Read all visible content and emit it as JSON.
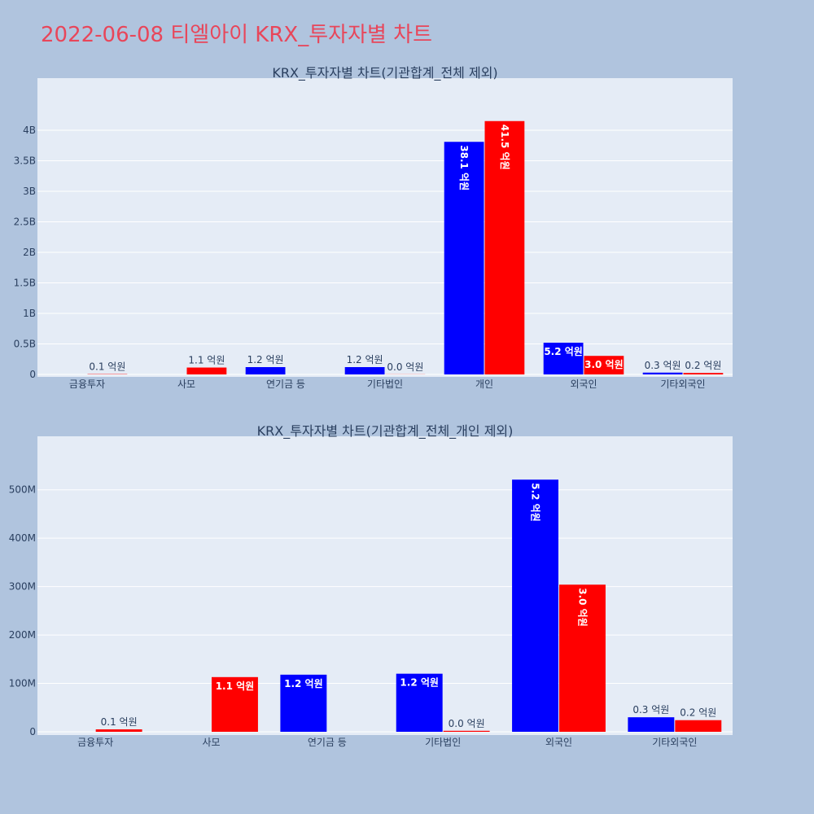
{
  "page_title": "2022-06-08 티엘아이 KRX_투자자별 차트",
  "colors": {
    "series_a": "#0000ff",
    "series_b": "#ff0000",
    "title": "#e8465a",
    "page_bg": "#b0c4de",
    "plot_bg": "#e5ecf6"
  },
  "chart_data": [
    {
      "type": "bar",
      "title": "KRX_투자자별 차트(기관합계_전체 제외)",
      "categories": [
        "금융투자",
        "사모",
        "연기금 등",
        "기타법인",
        "개인",
        "외국인",
        "기타외국인"
      ],
      "ylim": [
        0,
        4400000000
      ],
      "y_ticks": [
        0,
        500000000,
        1000000000,
        1500000000,
        2000000000,
        2500000000,
        3000000000,
        3500000000,
        4000000000
      ],
      "y_tick_labels": [
        "0",
        "0.5B",
        "1B",
        "1.5B",
        "2B",
        "2.5B",
        "3B",
        "3.5B",
        "4B"
      ],
      "grid": true,
      "series": [
        {
          "color": "#0000ff",
          "values": [
            0,
            0,
            120000000,
            120000000,
            3810000000,
            520000000,
            30000000
          ],
          "labels": [
            "",
            "",
            "1.2 억원",
            "1.2 억원",
            "38.1 억원",
            "5.2 억원",
            "0.3 억원"
          ]
        },
        {
          "color": "#ff0000",
          "values": [
            5000000,
            113000000,
            0,
            2000000,
            4150000000,
            304000000,
            24000000
          ],
          "labels": [
            "0.1 억원",
            "1.1 억원",
            "",
            "0.0 억원",
            "41.5 억원",
            "3.0 억원",
            "0.2 억원"
          ]
        }
      ]
    },
    {
      "type": "bar",
      "title": "KRX_투자자별 차트(기관합계_전체_개인 제외)",
      "categories": [
        "금융투자",
        "사모",
        "연기금 등",
        "기타법인",
        "외국인",
        "기타외국인"
      ],
      "ylim": [
        0,
        550000000
      ],
      "y_ticks": [
        0,
        100000000,
        200000000,
        300000000,
        400000000,
        500000000
      ],
      "y_tick_labels": [
        "0",
        "100M",
        "200M",
        "300M",
        "400M",
        "500M"
      ],
      "grid": true,
      "series": [
        {
          "color": "#0000ff",
          "values": [
            0,
            0,
            118000000,
            120000000,
            521000000,
            30000000
          ],
          "labels": [
            "",
            "",
            "1.2 억원",
            "1.2 억원",
            "5.2 억원",
            "0.3 억원"
          ]
        },
        {
          "color": "#ff0000",
          "values": [
            5000000,
            113000000,
            0,
            2000000,
            304000000,
            24000000
          ],
          "labels": [
            "0.1 억원",
            "1.1 억원",
            "",
            "0.0 억원",
            "3.0 억원",
            "0.2 억원"
          ]
        }
      ]
    }
  ]
}
